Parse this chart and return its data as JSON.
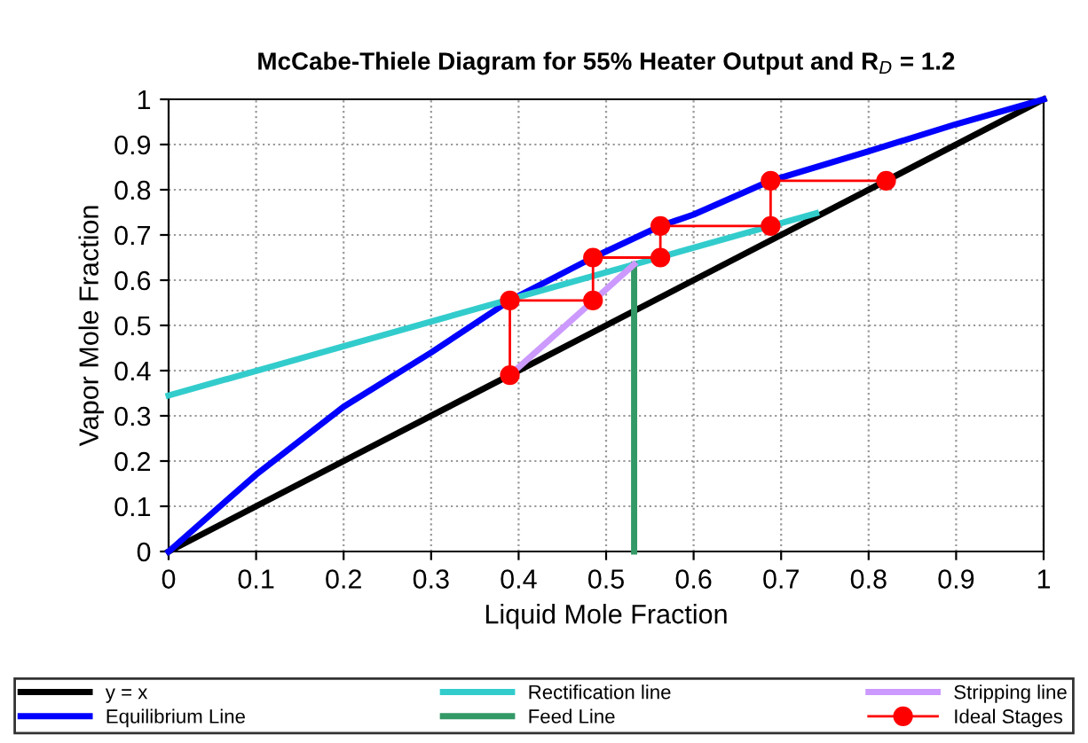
{
  "chart_data": {
    "type": "line",
    "title": "McCabe-Thiele Diagram for 55% Heater Output and R$_{D}$ = 1.2",
    "xlabel": "Liquid Mole Fraction",
    "ylabel": "Vapor Mole Fraction",
    "xlim": [
      0,
      1
    ],
    "ylim": [
      0,
      1
    ],
    "xticks": [
      0,
      0.1,
      0.2,
      0.3,
      0.4,
      0.5,
      0.6,
      0.7,
      0.8,
      0.9,
      1
    ],
    "yticks": [
      0,
      0.1,
      0.2,
      0.3,
      0.4,
      0.5,
      0.6,
      0.7,
      0.8,
      0.9,
      1
    ],
    "grid": true,
    "legend": "bottom",
    "series": [
      {
        "name": "y = x",
        "color": "#000000",
        "x": [
          0,
          1
        ],
        "values": [
          0,
          1
        ]
      },
      {
        "name": "Equilibrium Line",
        "color": "#0000ff",
        "x": [
          0,
          0.1,
          0.2,
          0.3,
          0.39,
          0.485,
          0.562,
          0.6,
          0.688,
          0.8,
          0.9,
          1
        ],
        "values": [
          0,
          0.17,
          0.32,
          0.44,
          0.555,
          0.65,
          0.72,
          0.745,
          0.82,
          0.885,
          0.945,
          1
        ]
      },
      {
        "name": "Rectification line",
        "color": "#33cccc",
        "x": [
          0,
          0.74
        ],
        "values": [
          0.345,
          0.748
        ]
      },
      {
        "name": "Feed Line",
        "color": "#339966",
        "x": [
          0.532,
          0.532
        ],
        "values": [
          0,
          0.635
        ]
      },
      {
        "name": "Stripping line",
        "color": "#cc99ff",
        "x": [
          0.39,
          0.532
        ],
        "values": [
          0.39,
          0.635
        ]
      },
      {
        "name": "Ideal Stages",
        "color": "#ff0000",
        "marker": "circle",
        "x": [
          0.82,
          0.688,
          0.688,
          0.562,
          0.562,
          0.485,
          0.485,
          0.39,
          0.39
        ],
        "values": [
          0.82,
          0.82,
          0.72,
          0.72,
          0.65,
          0.65,
          0.555,
          0.555,
          0.39
        ]
      }
    ]
  }
}
